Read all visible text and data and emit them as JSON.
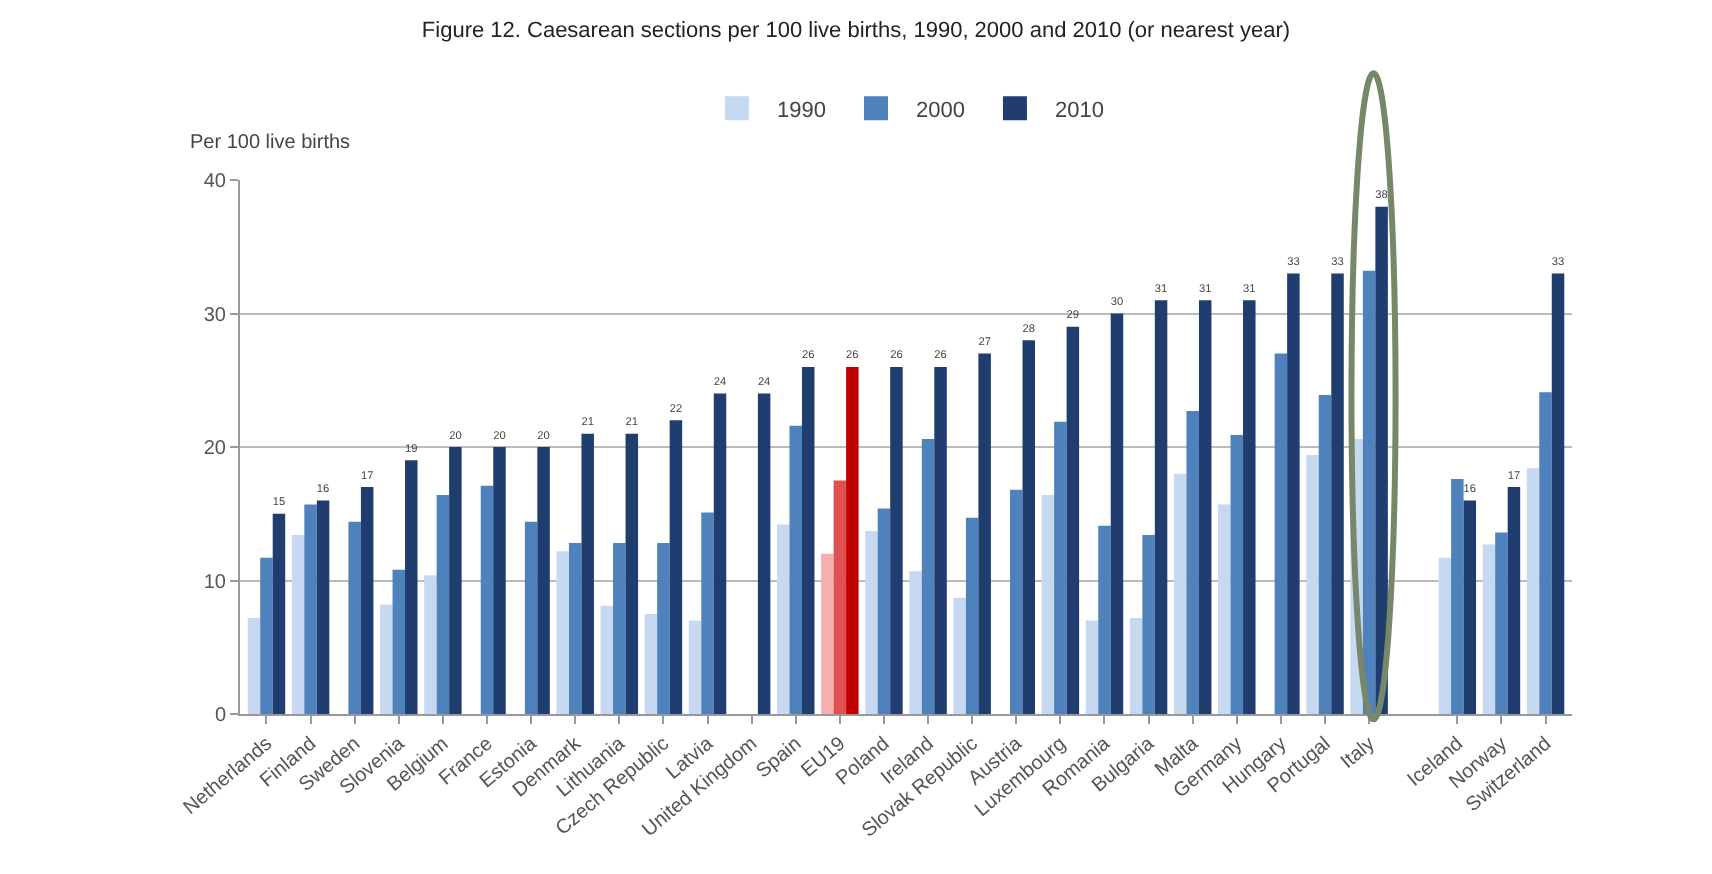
{
  "chart_data": {
    "type": "bar",
    "title": "Figure 12. Caesarean sections per 100 live births, 1990, 2000 and 2010 (or nearest year)",
    "ylabel": "Per 100 live births",
    "categories": [
      "Netherlands",
      "Finland",
      "Sweden",
      "Slovenia",
      "Belgium",
      "France",
      "Estonia",
      "Denmark",
      "Lithuania",
      "Czech Republic",
      "Latvia",
      "United Kingdom",
      "Spain",
      "EU19",
      "Poland",
      "Ireland",
      "Slovak Republic",
      "Austria",
      "Luxembourg",
      "Romania",
      "Bulgaria",
      "Malta",
      "Germany",
      "Hungary",
      "Portugal",
      "Italy",
      null,
      "Iceland",
      "Norway",
      "Switzerland"
    ],
    "series": [
      {
        "name": "1990",
        "color": "#c6d9f1",
        "colors": [
          "#c6d9f1",
          "#c6d9f1",
          "#c6d9f1",
          "#c6d9f1",
          "#c6d9f1",
          "#c6d9f1",
          "#c6d9f1",
          "#c6d9f1",
          "#c6d9f1",
          "#c6d9f1",
          "#c6d9f1",
          "#c6d9f1",
          "#c6d9f1",
          "#f2b0b0",
          "#c6d9f1",
          "#c6d9f1",
          "#c6d9f1",
          "#c6d9f1",
          "#c6d9f1",
          "#c6d9f1",
          "#c6d9f1",
          "#c6d9f1",
          "#c6d9f1",
          "#c6d9f1",
          "#c6d9f1",
          "#c6d9f1",
          "#c6d9f1",
          "#c6d9f1",
          "#c6d9f1",
          "#c6d9f1"
        ],
        "values": [
          7.2,
          13.4,
          null,
          8.2,
          10.4,
          null,
          null,
          12.2,
          8.1,
          7.5,
          7.0,
          null,
          14.2,
          12.0,
          13.7,
          10.7,
          8.7,
          null,
          16.4,
          7.0,
          7.2,
          18.0,
          15.7,
          null,
          19.4,
          20.6,
          null,
          11.7,
          12.7,
          18.4
        ]
      },
      {
        "name": "2000",
        "color": "#4f81bd",
        "colors": [
          "#4f81bd",
          "#4f81bd",
          "#4f81bd",
          "#4f81bd",
          "#4f81bd",
          "#4f81bd",
          "#4f81bd",
          "#4f81bd",
          "#4f81bd",
          "#4f81bd",
          "#4f81bd",
          "#4f81bd",
          "#4f81bd",
          "#e05050",
          "#4f81bd",
          "#4f81bd",
          "#4f81bd",
          "#4f81bd",
          "#4f81bd",
          "#4f81bd",
          "#4f81bd",
          "#4f81bd",
          "#4f81bd",
          "#4f81bd",
          "#4f81bd",
          "#4f81bd",
          "#4f81bd",
          "#4f81bd",
          "#4f81bd",
          "#4f81bd"
        ],
        "values": [
          11.7,
          15.7,
          14.4,
          10.8,
          16.4,
          17.1,
          14.4,
          12.8,
          12.8,
          12.8,
          15.1,
          null,
          21.6,
          17.5,
          15.4,
          20.6,
          14.7,
          16.8,
          21.9,
          14.1,
          13.4,
          22.7,
          20.9,
          27.0,
          23.9,
          33.2,
          null,
          17.6,
          13.6,
          24.1
        ]
      },
      {
        "name": "2010",
        "color": "#1f3d6e",
        "colors": [
          "#1f3d6e",
          "#1f3d6e",
          "#1f3d6e",
          "#1f3d6e",
          "#1f3d6e",
          "#1f3d6e",
          "#1f3d6e",
          "#1f3d6e",
          "#1f3d6e",
          "#1f3d6e",
          "#1f3d6e",
          "#1f3d6e",
          "#1f3d6e",
          "#c00000",
          "#1f3d6e",
          "#1f3d6e",
          "#1f3d6e",
          "#1f3d6e",
          "#1f3d6e",
          "#1f3d6e",
          "#1f3d6e",
          "#1f3d6e",
          "#1f3d6e",
          "#1f3d6e",
          "#1f3d6e",
          "#1f3d6e",
          "#1f3d6e",
          "#1f3d6e",
          "#1f3d6e",
          "#1f3d6e"
        ],
        "values": [
          15,
          16,
          17,
          19,
          20,
          20,
          20,
          21,
          21,
          22,
          24,
          24,
          26,
          26,
          26,
          26,
          27,
          28,
          29,
          30,
          31,
          31,
          31,
          33,
          33,
          38,
          null,
          16,
          17,
          33
        ],
        "value_labels": [
          "15",
          "16",
          "17",
          "19",
          "20",
          "20",
          "20",
          "21",
          "21",
          "22",
          "24",
          "24",
          "26",
          "26",
          "26",
          "26",
          "27",
          "28",
          "29",
          "30",
          "31",
          "31",
          "31",
          "33",
          "33",
          "38",
          null,
          "16",
          "17",
          "33"
        ]
      }
    ],
    "ylim": [
      0,
      40
    ],
    "yticks": [
      0,
      10,
      20,
      30,
      40
    ],
    "grid": "y",
    "legend": "top"
  }
}
